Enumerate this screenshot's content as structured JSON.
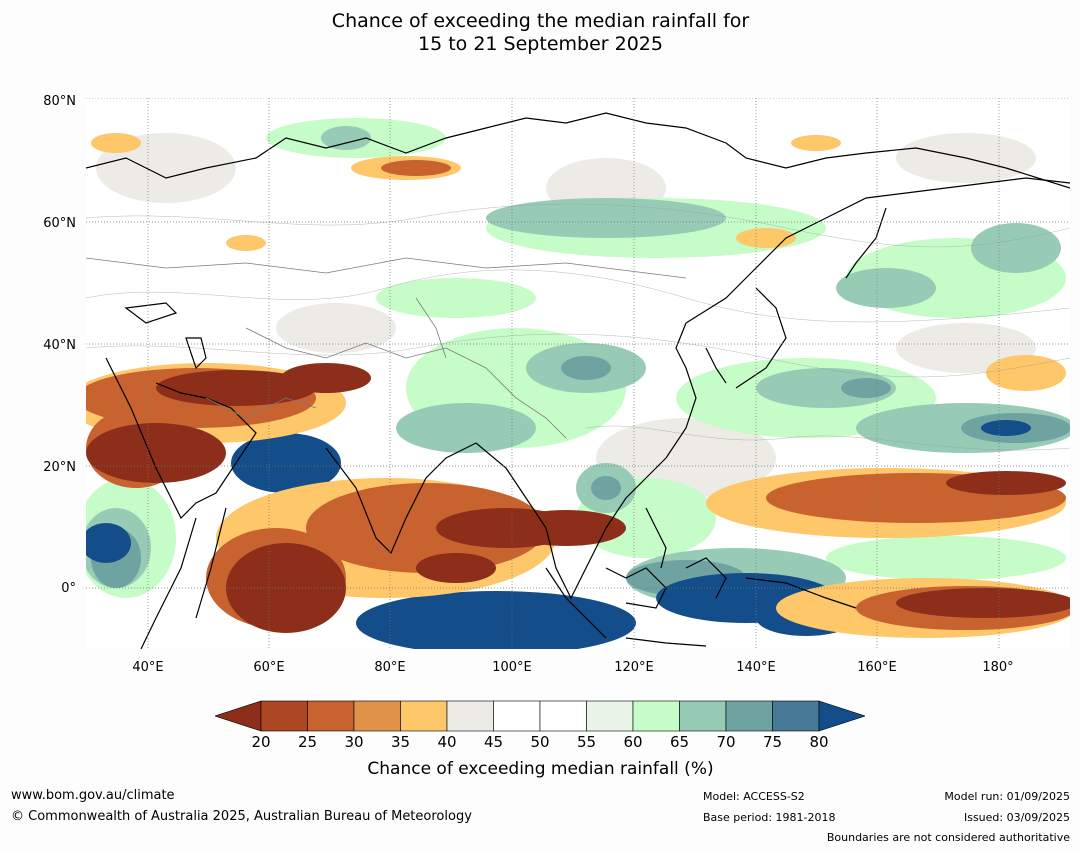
{
  "title_line1": "Chance of exceeding the median rainfall for",
  "title_line2": "15 to 21 September 2025",
  "lat_labels": [
    "80°N",
    "60°N",
    "40°N",
    "20°N",
    "0°"
  ],
  "lon_labels": [
    "40°E",
    "60°E",
    "80°E",
    "100°E",
    "120°E",
    "140°E",
    "160°E",
    "180°"
  ],
  "colorbar": {
    "title": "Chance of exceeding median rainfall (%)",
    "ticks": [
      "20",
      "25",
      "30",
      "35",
      "40",
      "45",
      "50",
      "55",
      "60",
      "65",
      "70",
      "75",
      "80"
    ],
    "colors": [
      "#8c2e1a",
      "#ad4622",
      "#c86330",
      "#e0914a",
      "#fdc76a",
      "#ecebe6",
      "#ffffff",
      "#ffffff",
      "#e8f5e8",
      "#c6fcc8",
      "#97cbb6",
      "#6ea3a2",
      "#467a97",
      "#134e8a"
    ],
    "under_color": "#8c2e1a",
    "over_color": "#134e8a"
  },
  "footer": {
    "url": "www.bom.gov.au/climate",
    "copyright": "© Commonwealth of Australia 2025, Australian Bureau of Meteorology",
    "model": "Model: ACCESS-S2",
    "base_period": "Base period: 1981-2018",
    "model_run": "Model run: 01/09/2025",
    "issued": "Issued: 03/09/2025",
    "disclaimer": "Boundaries are not considered authoritative"
  }
}
